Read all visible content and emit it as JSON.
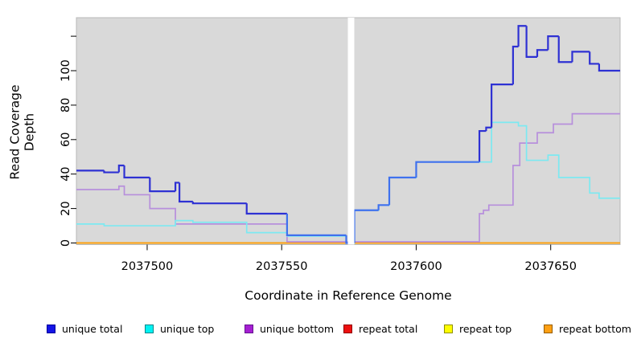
{
  "chart_data": {
    "type": "line",
    "subtype": "step-coverage-plot",
    "title": "",
    "xlabel": "Coordinate in Reference Genome",
    "ylabel": "Read Coverage Depth",
    "x_axis": {
      "title": "Coordinate in Reference Genome",
      "ticks": [
        2037500,
        2037550,
        2037600,
        2037650
      ],
      "tick_labels": [
        "2037500",
        "2037550",
        "2037600",
        "2037650"
      ],
      "range": [
        2037473.7,
        2037675.8
      ]
    },
    "y_axis": {
      "title": "Read Coverage Depth",
      "ticks": [
        0,
        20,
        40,
        60,
        80,
        100,
        120
      ],
      "tick_labels": [
        "0",
        "20",
        "40",
        "60",
        "80",
        "100",
        ""
      ],
      "range": [
        0,
        130.8
      ],
      "grid": false
    },
    "gap_region": {
      "from": 2037574.6,
      "to": 2037577,
      "note": "white vertical band with no data drawn"
    },
    "series": [
      {
        "name": "repeat total",
        "color": "#dd0000",
        "points": [
          [
            2037473.7,
            0
          ]
        ],
        "note": "constant 0, hidden under repeat bottom line"
      },
      {
        "name": "repeat top",
        "color": "#f2f200",
        "points": [
          [
            2037473.7,
            0
          ]
        ],
        "note": "constant 0, hidden under repeat bottom line"
      },
      {
        "name": "repeat bottom",
        "color": "#ff9c0e",
        "points": [
          [
            2037473.7,
            0
          ]
        ]
      },
      {
        "name": "unique bottom",
        "color": "#b78fdc",
        "points": [
          [
            2037473.7,
            31
          ],
          [
            2037489.5,
            33
          ],
          [
            2037491.5,
            28
          ],
          [
            2037501,
            20
          ],
          [
            2037510.5,
            11
          ],
          [
            2037552,
            0.7
          ],
          [
            2037623.5,
            17
          ],
          [
            2037625,
            19
          ],
          [
            2037627,
            22
          ],
          [
            2037636,
            45
          ],
          [
            2037638.5,
            58
          ],
          [
            2037645,
            64
          ],
          [
            2037651,
            69
          ],
          [
            2037658,
            75
          ]
        ]
      },
      {
        "name": "unique top",
        "color": "#7ce9f1",
        "points": [
          [
            2037473.7,
            11
          ],
          [
            2037484,
            10
          ],
          [
            2037510.5,
            13
          ],
          [
            2037517,
            12
          ],
          [
            2037537,
            6
          ],
          [
            2037552,
            4
          ],
          [
            2037574,
            0
          ],
          [
            2037577,
            19
          ],
          [
            2037586,
            22
          ],
          [
            2037590,
            38
          ],
          [
            2037600,
            47
          ],
          [
            2037628,
            70
          ],
          [
            2037638,
            68
          ],
          [
            2037641,
            48
          ],
          [
            2037649,
            51
          ],
          [
            2037653,
            38
          ],
          [
            2037664.5,
            29
          ],
          [
            2037668,
            26
          ]
        ]
      },
      {
        "name": "unique total",
        "color": "#2e31d3",
        "overlap_color": "#3f71ee",
        "overlap_with": "unique top",
        "points": [
          [
            2037473.7,
            42
          ],
          [
            2037484,
            41
          ],
          [
            2037489.5,
            45
          ],
          [
            2037491.5,
            38
          ],
          [
            2037501,
            30
          ],
          [
            2037510.5,
            35
          ],
          [
            2037512,
            24
          ],
          [
            2037517,
            23
          ],
          [
            2037537,
            17
          ],
          [
            2037552,
            4.5
          ],
          [
            2037574,
            0
          ],
          [
            2037577,
            19
          ],
          [
            2037586,
            22
          ],
          [
            2037590,
            38
          ],
          [
            2037600,
            47
          ],
          [
            2037623.5,
            65
          ],
          [
            2037626,
            67
          ],
          [
            2037628,
            92
          ],
          [
            2037636,
            114
          ],
          [
            2037638,
            126
          ],
          [
            2037641,
            108
          ],
          [
            2037645,
            112
          ],
          [
            2037649,
            120
          ],
          [
            2037653,
            105
          ],
          [
            2037658,
            111
          ],
          [
            2037664.5,
            104
          ],
          [
            2037668,
            100
          ]
        ]
      }
    ],
    "legend": {
      "position": "bottom",
      "items": [
        {
          "label": "unique total",
          "fill": "#1414e6",
          "border": "#00009b"
        },
        {
          "label": "unique top",
          "fill": "#00f2f2",
          "border": "#00868b"
        },
        {
          "label": "unique bottom",
          "fill": "#a51fd2",
          "border": "#64138f"
        },
        {
          "label": "repeat total",
          "fill": "#ed0f0f",
          "border": "#900000"
        },
        {
          "label": "repeat top",
          "fill": "#fdfd00",
          "border": "#8f8f00"
        },
        {
          "label": "repeat bottom",
          "fill": "#ffa013",
          "border": "#955c00"
        }
      ]
    },
    "panel": {
      "background": "#d9d9d9",
      "border": "#b8b8b8",
      "gap_fill": "#ffffff"
    }
  }
}
